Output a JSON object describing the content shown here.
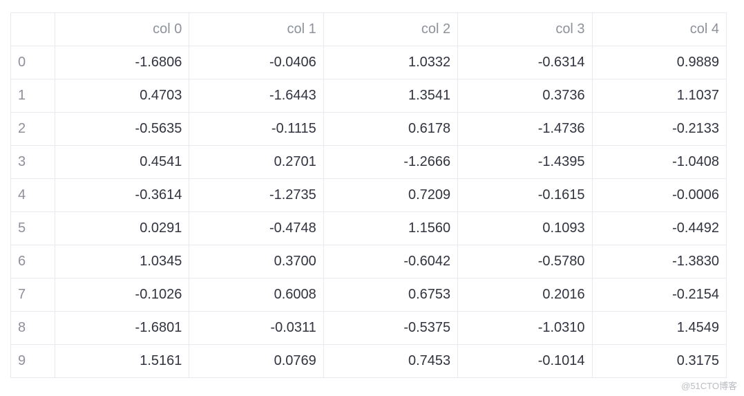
{
  "table": {
    "corner": "",
    "columns": [
      "col 0",
      "col 1",
      "col 2",
      "col 3",
      "col 4"
    ],
    "rows": [
      {
        "index": "0",
        "cells": [
          "-1.6806",
          "-0.0406",
          "1.0332",
          "-0.6314",
          "0.9889"
        ]
      },
      {
        "index": "1",
        "cells": [
          "0.4703",
          "-1.6443",
          "1.3541",
          "0.3736",
          "1.1037"
        ]
      },
      {
        "index": "2",
        "cells": [
          "-0.5635",
          "-0.1115",
          "0.6178",
          "-1.4736",
          "-0.2133"
        ]
      },
      {
        "index": "3",
        "cells": [
          "0.4541",
          "0.2701",
          "-1.2666",
          "-1.4395",
          "-1.0408"
        ]
      },
      {
        "index": "4",
        "cells": [
          "-0.3614",
          "-1.2735",
          "0.7209",
          "-0.1615",
          "-0.0006"
        ]
      },
      {
        "index": "5",
        "cells": [
          "0.0291",
          "-0.4748",
          "1.1560",
          "0.1093",
          "-0.4492"
        ]
      },
      {
        "index": "6",
        "cells": [
          "1.0345",
          "0.3700",
          "-0.6042",
          "-0.5780",
          "-1.3830"
        ]
      },
      {
        "index": "7",
        "cells": [
          "-0.1026",
          "0.6008",
          "0.6753",
          "0.2016",
          "-0.2154"
        ]
      },
      {
        "index": "8",
        "cells": [
          "-1.6801",
          "-0.0311",
          "-0.5375",
          "-1.0310",
          "1.4549"
        ]
      },
      {
        "index": "9",
        "cells": [
          "1.5161",
          "0.0769",
          "0.7453",
          "-0.1014",
          "0.3175"
        ]
      }
    ]
  },
  "watermark": "@51CTO博客"
}
